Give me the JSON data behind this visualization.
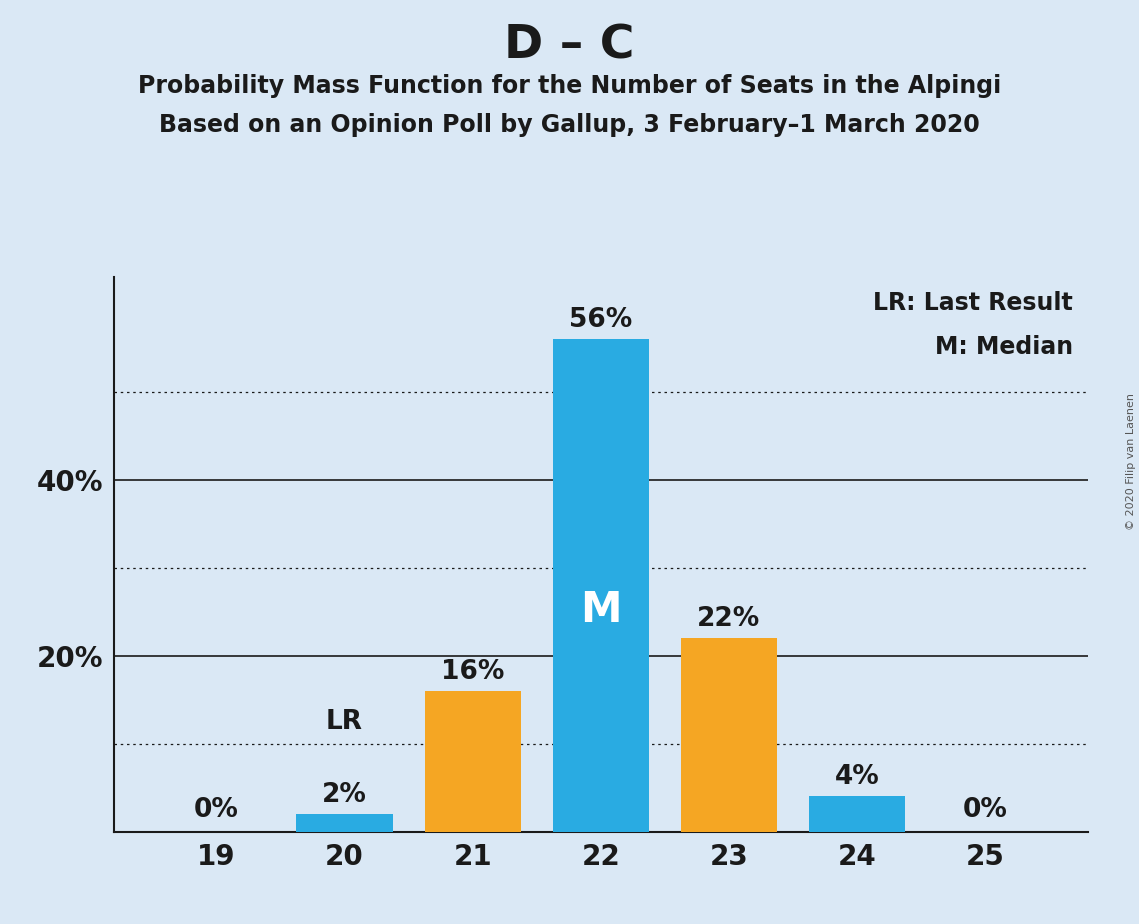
{
  "title": "D – C",
  "subtitle1": "Probability Mass Function for the Number of Seats in the Alpingi",
  "subtitle2": "Based on an Opinion Poll by Gallup, 3 February–1 March 2020",
  "copyright": "© 2020 Filip van Laenen",
  "seats": [
    19,
    20,
    21,
    22,
    23,
    24,
    25
  ],
  "probabilities": [
    0,
    2,
    16,
    56,
    22,
    4,
    0
  ],
  "bar_colors": [
    "#29ABE2",
    "#29ABE2",
    "#F5A623",
    "#29ABE2",
    "#F5A623",
    "#29ABE2",
    "#29ABE2"
  ],
  "median_seat": 22,
  "last_result_seat": 20,
  "legend_lr": "LR: Last Result",
  "legend_m": "M: Median",
  "background_color": "#DAE8F5",
  "solid_lines": [
    0,
    20,
    40
  ],
  "dotted_lines": [
    10,
    30,
    50
  ],
  "ylim": [
    0,
    63
  ],
  "median_label_color": "#FFFFFF",
  "bar_label_color": "#1A1A1A",
  "title_fontsize": 34,
  "subtitle_fontsize": 17,
  "tick_fontsize": 20,
  "bar_label_fontsize": 19,
  "legend_fontsize": 17,
  "copyright_fontsize": 8
}
